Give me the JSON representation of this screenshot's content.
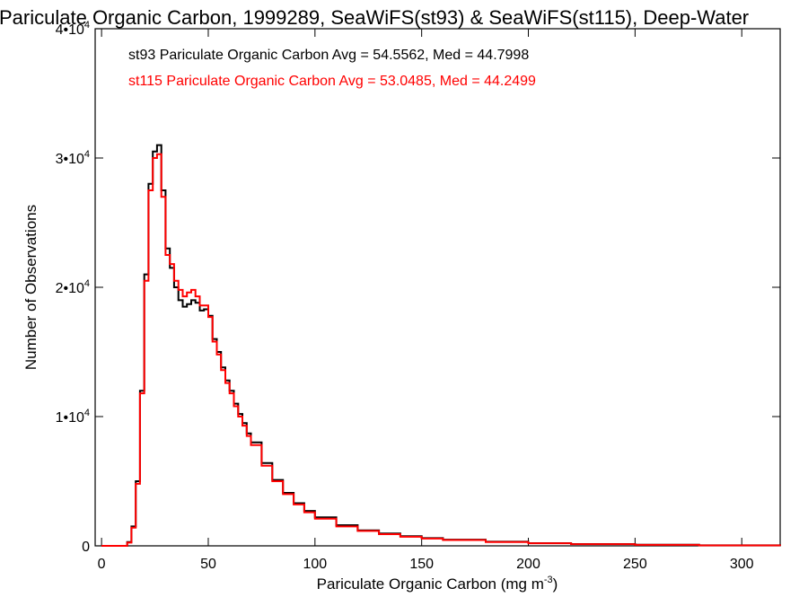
{
  "chart_data": {
    "type": "line",
    "title": "Pariculate Organic Carbon, 1999289, SeaWiFS(st93) & SeaWiFS(st115), Deep-Water",
    "xlabel": "Pariculate Organic Carbon (mg m",
    "xlabel_sup": "-3",
    "xlabel_close": ")",
    "ylabel": "Number of Observations",
    "xlim": [
      -3,
      318
    ],
    "ylim": [
      0,
      40000
    ],
    "x_ticks": [
      0,
      50,
      100,
      150,
      200,
      250,
      300
    ],
    "x_tick_labels": [
      "0",
      "50",
      "100",
      "150",
      "200",
      "250",
      "300"
    ],
    "y_ticks": [
      0,
      10000,
      20000,
      30000,
      40000
    ],
    "y_tick_labels": [
      {
        "base": "0",
        "exp": ""
      },
      {
        "base": "1•10",
        "exp": "4"
      },
      {
        "base": "2•10",
        "exp": "4"
      },
      {
        "base": "3•10",
        "exp": "4"
      },
      {
        "base": "4•10",
        "exp": "4"
      }
    ],
    "grid": false,
    "legend_position": "top-left",
    "series": [
      {
        "name": "st93",
        "color": "#000000",
        "stats_text": "st93 Pariculate Organic Carbon Avg = 54.5562, Med = 44.7998",
        "x": [
          0,
          10,
          12,
          14,
          16,
          18,
          20,
          22,
          24,
          26,
          28,
          30,
          32,
          34,
          36,
          38,
          40,
          42,
          44,
          46,
          48,
          50,
          52,
          54,
          56,
          58,
          60,
          62,
          64,
          66,
          68,
          70,
          75,
          80,
          85,
          90,
          95,
          100,
          110,
          120,
          130,
          140,
          150,
          160,
          180,
          200,
          220,
          250,
          280,
          318
        ],
        "y": [
          0,
          0,
          300,
          1500,
          5000,
          12000,
          21000,
          28000,
          30500,
          31000,
          27500,
          23000,
          21500,
          20000,
          19000,
          18500,
          18700,
          19000,
          18800,
          18200,
          18300,
          17800,
          16000,
          15000,
          13800,
          12800,
          12000,
          11000,
          10200,
          9500,
          8700,
          8000,
          6400,
          5100,
          4100,
          3300,
          2700,
          2200,
          1600,
          1200,
          950,
          750,
          600,
          480,
          320,
          210,
          140,
          80,
          40,
          10
        ]
      },
      {
        "name": "st115",
        "color": "#ff0000",
        "stats_text": "st115 Pariculate Organic Carbon Avg = 53.0485, Med = 44.2499",
        "x": [
          0,
          10,
          12,
          14,
          16,
          18,
          20,
          22,
          24,
          26,
          28,
          30,
          32,
          34,
          36,
          38,
          40,
          42,
          44,
          46,
          48,
          50,
          52,
          54,
          56,
          58,
          60,
          62,
          64,
          66,
          68,
          70,
          75,
          80,
          85,
          90,
          95,
          100,
          110,
          120,
          130,
          140,
          150,
          160,
          180,
          200,
          220,
          250,
          280,
          318
        ],
        "y": [
          0,
          0,
          250,
          1400,
          4800,
          11800,
          20500,
          27500,
          30000,
          30300,
          27000,
          22500,
          21800,
          20500,
          19800,
          19300,
          19600,
          19800,
          19300,
          18600,
          18600,
          17700,
          15800,
          14800,
          13600,
          12600,
          11800,
          10800,
          10000,
          9300,
          8500,
          7800,
          6200,
          5000,
          4000,
          3200,
          2600,
          2100,
          1500,
          1150,
          900,
          700,
          560,
          450,
          300,
          200,
          130,
          75,
          35,
          8
        ]
      }
    ]
  }
}
